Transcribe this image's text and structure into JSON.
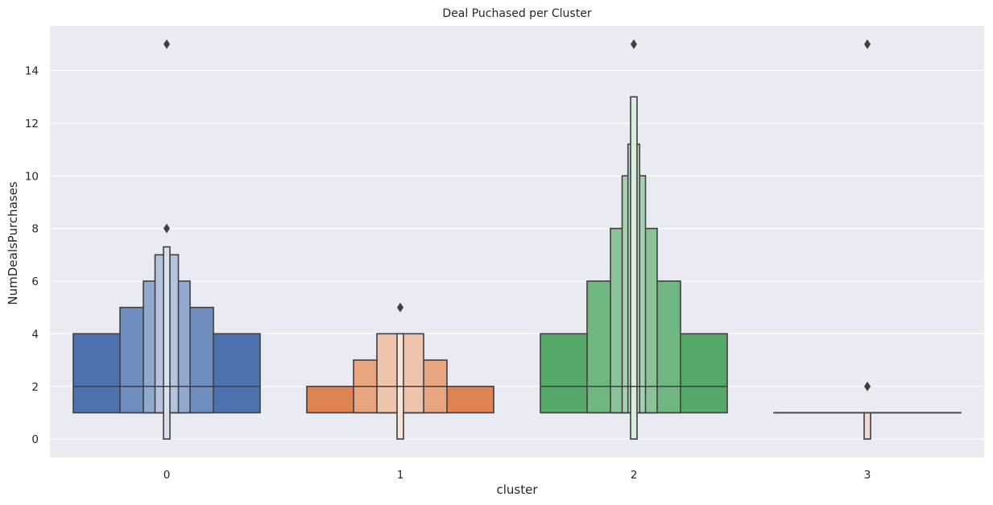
{
  "chart_data": {
    "type": "boxenplot",
    "title": "Deal Puchased per Cluster",
    "xlabel": "cluster",
    "ylabel": "NumDealsPurchases",
    "categories": [
      "0",
      "1",
      "2",
      "3"
    ],
    "ylim": [
      -0.7,
      15.7
    ],
    "yticks": [
      "0",
      "2",
      "4",
      "6",
      "8",
      "10",
      "12",
      "14"
    ],
    "grid": true,
    "background": "#eaeaf2",
    "box_edge_color": "#3f3f3f",
    "series": [
      {
        "category": "0",
        "color": "#4c72b0",
        "median": 2,
        "boxes": [
          [
            1,
            4
          ],
          [
            1,
            5
          ],
          [
            1,
            6
          ],
          [
            1,
            7
          ],
          [
            0,
            7.3
          ]
        ],
        "outliers": [
          8,
          15
        ]
      },
      {
        "category": "1",
        "color": "#dd8452",
        "median": 2,
        "boxes": [
          [
            1,
            2
          ],
          [
            1,
            3
          ],
          [
            1,
            4
          ],
          [
            0,
            4
          ]
        ],
        "outliers": [
          5
        ]
      },
      {
        "category": "2",
        "color": "#55a868",
        "median": 2,
        "boxes": [
          [
            1,
            4
          ],
          [
            1,
            6
          ],
          [
            1,
            8
          ],
          [
            1,
            10
          ],
          [
            1,
            11.2
          ],
          [
            0,
            13
          ]
        ],
        "outliers": [
          15
        ]
      },
      {
        "category": "3",
        "color": "#c44e52",
        "median": 1,
        "boxes": [
          [
            1,
            1
          ],
          [
            0,
            1
          ]
        ],
        "outliers": [
          2,
          15
        ]
      }
    ]
  }
}
